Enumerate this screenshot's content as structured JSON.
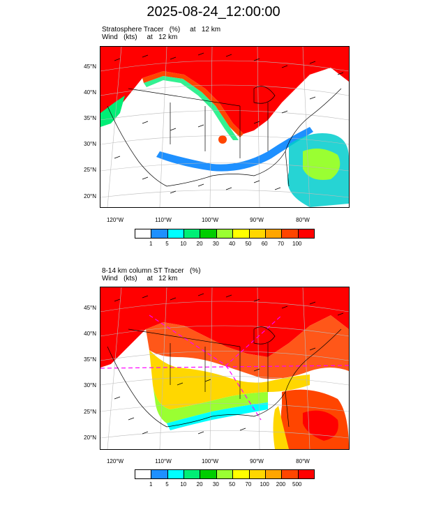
{
  "title": "2025-08-24_12:00:00",
  "panels": [
    {
      "subtitle_line1": "Stratosphere Tracer   (%)     at   12 km",
      "subtitle_line2": "Wind   (kts)     at   12 km",
      "lat_labels": [
        "45°N",
        "40°N",
        "35°N",
        "30°N",
        "25°N",
        "20°N"
      ],
      "lon_labels": [
        "120°W",
        "110°W",
        "100°W",
        "90°W",
        "80°W"
      ],
      "colorbar_labels": [
        "1",
        "5",
        "10",
        "20",
        "30",
        "40",
        "50",
        "60",
        "70",
        "100"
      ],
      "colorbar_colors": [
        "#ffffff",
        "#1e90ff",
        "#00ffff",
        "#00ee76",
        "#00cd00",
        "#9aff32",
        "#ffff00",
        "#ffd700",
        "#ffa500",
        "#ff4500",
        "#ff0000"
      ]
    },
    {
      "subtitle_line1": "8-14 km column ST Tracer   (%)",
      "subtitle_line2": "Wind   (kts)     at   12 km",
      "lat_labels": [
        "45°N",
        "40°N",
        "35°N",
        "30°N",
        "25°N",
        "20°N"
      ],
      "lon_labels": [
        "120°W",
        "110°W",
        "100°W",
        "90°W",
        "80°W"
      ],
      "colorbar_labels": [
        "1",
        "5",
        "10",
        "20",
        "30",
        "50",
        "70",
        "100",
        "200",
        "500"
      ],
      "colorbar_colors": [
        "#ffffff",
        "#1e90ff",
        "#00ffff",
        "#00ee76",
        "#00cd00",
        "#9aff32",
        "#ffff00",
        "#ffd700",
        "#ffa500",
        "#ff4500",
        "#ff0000"
      ]
    }
  ]
}
